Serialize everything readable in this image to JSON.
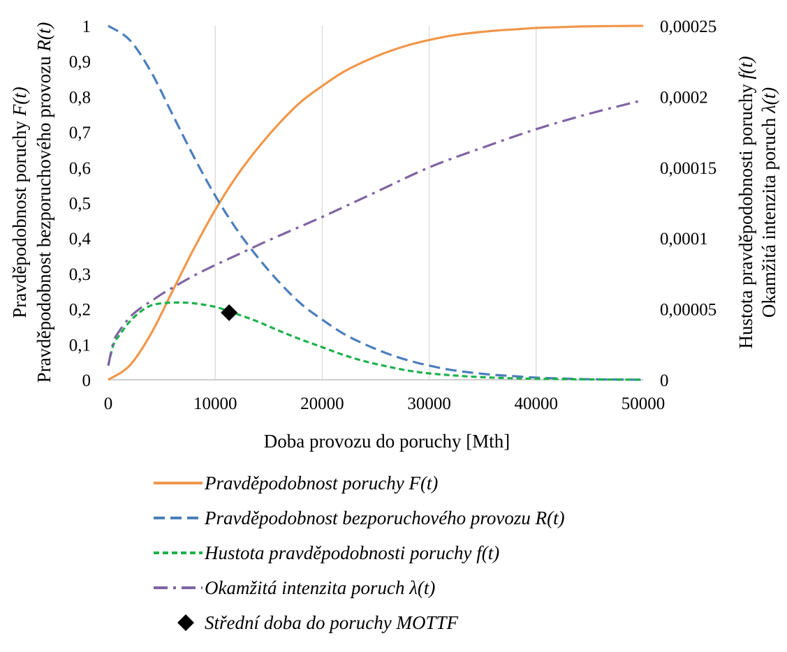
{
  "chart_data": {
    "type": "line",
    "xlabel": "Doba provozu do poruchy [Mth]",
    "ylabel_left": [
      "Pravděpodobnost poruchy ",
      "F(t)"
    ],
    "ylabel_left2": [
      "Pravděpodobnost bezporuchového provozu ",
      "R(t)"
    ],
    "ylabel_right": [
      "Hustota pravděpodobnosti poruchy ",
      "f(t)"
    ],
    "ylabel_right2": [
      "Okamžitá intenzita poruch ",
      "λ(t)"
    ],
    "xlim": [
      0,
      50000
    ],
    "ylim_left": [
      0,
      1
    ],
    "ylim_right": [
      0,
      0.00025
    ],
    "x_ticks": [
      "0",
      "10000",
      "20000",
      "30000",
      "40000",
      "50000"
    ],
    "y_ticks_left": [
      "0",
      "0,1",
      "0,2",
      "0,3",
      "0,4",
      "0,5",
      "0,6",
      "0,7",
      "0,8",
      "0,9",
      "1"
    ],
    "y_ticks_right": [
      "0",
      "0,00005",
      "0,0001",
      "0,00015",
      "0,0002",
      "0,00025"
    ],
    "grid": "vertical",
    "legend_position": "bottom",
    "series": [
      {
        "name": "Pravděpodobnost poruchy F(t)",
        "axis": "left",
        "color": "#F0974B",
        "dash": "solid",
        "x": [
          0,
          2000,
          4000,
          6000,
          8000,
          10000,
          12000,
          14000,
          16000,
          18000,
          20000,
          22000,
          24000,
          26000,
          28000,
          30000,
          32000,
          34000,
          36000,
          38000,
          40000,
          42000,
          44000,
          46000,
          48000,
          50000
        ],
        "y": [
          0,
          0.04,
          0.13,
          0.25,
          0.37,
          0.48,
          0.575,
          0.655,
          0.725,
          0.785,
          0.83,
          0.87,
          0.9,
          0.925,
          0.945,
          0.96,
          0.972,
          0.98,
          0.986,
          0.99,
          0.994,
          0.996,
          0.998,
          0.999,
          0.9995,
          1.0
        ]
      },
      {
        "name": "Pravděpodobnost bezporuchového provozu R(t)",
        "axis": "left",
        "color": "#4A7EBB",
        "dash": "long-dash",
        "x": [
          0,
          2000,
          4000,
          6000,
          8000,
          10000,
          12000,
          14000,
          16000,
          18000,
          20000,
          22000,
          24000,
          26000,
          28000,
          30000,
          32000,
          34000,
          36000,
          38000,
          40000,
          42000,
          44000,
          46000,
          48000,
          50000
        ],
        "y": [
          1,
          0.96,
          0.87,
          0.75,
          0.63,
          0.52,
          0.425,
          0.345,
          0.275,
          0.215,
          0.17,
          0.13,
          0.1,
          0.075,
          0.055,
          0.04,
          0.028,
          0.02,
          0.014,
          0.01,
          0.006,
          0.004,
          0.002,
          0.001,
          0.0005,
          0
        ]
      },
      {
        "name": "Hustota pravděpodobnosti poruchy f(t)",
        "axis": "right",
        "color": "#1DB14B",
        "dash": "short-dash",
        "x": [
          0,
          500,
          1000,
          2000,
          3000,
          4000,
          5000,
          6000,
          7000,
          8000,
          10000,
          12000,
          14000,
          16000,
          18000,
          20000,
          22000,
          24000,
          26000,
          28000,
          30000,
          32000,
          34000,
          36000,
          38000,
          40000,
          42000,
          44000,
          46000,
          48000,
          50000
        ],
        "y": [
          1e-05,
          2.5e-05,
          3.1e-05,
          4.1e-05,
          4.8e-05,
          5.25e-05,
          5.4e-05,
          5.45e-05,
          5.45e-05,
          5.4e-05,
          5.15e-05,
          4.65e-05,
          4.1e-05,
          3.45e-05,
          2.85e-05,
          2.3e-05,
          1.75e-05,
          1.3e-05,
          9.5e-06,
          6.5e-06,
          4.5e-06,
          3.2e-06,
          2.2e-06,
          1.5e-06,
          1e-06,
          7e-07,
          5e-07,
          3e-07,
          2e-07,
          1e-07,
          1e-07
        ]
      },
      {
        "name": "Okamžitá intenzita poruch λ(t)",
        "axis": "right",
        "color": "#8064A2",
        "dash": "dash-dot",
        "x": [
          0,
          500,
          1000,
          2000,
          3000,
          4000,
          5000,
          6000,
          8000,
          10000,
          12000,
          15000,
          20000,
          25000,
          30000,
          35000,
          40000,
          45000,
          50000
        ],
        "y": [
          1e-05,
          2.7e-05,
          3.4e-05,
          4.4e-05,
          5.05e-05,
          5.55e-05,
          6.05e-05,
          6.5e-05,
          7.35e-05,
          8.1e-05,
          8.8e-05,
          9.85e-05,
          0.000115,
          0.0001325,
          0.00015,
          0.000164,
          0.000177,
          0.000188,
          0.0001975
        ]
      },
      {
        "name": "Střední doba do poruchy MOTTF",
        "axis": "right",
        "color": "#000000",
        "dash": "none",
        "marker": "diamond",
        "x": [
          11300
        ],
        "y": [
          4.74e-05
        ]
      }
    ]
  }
}
